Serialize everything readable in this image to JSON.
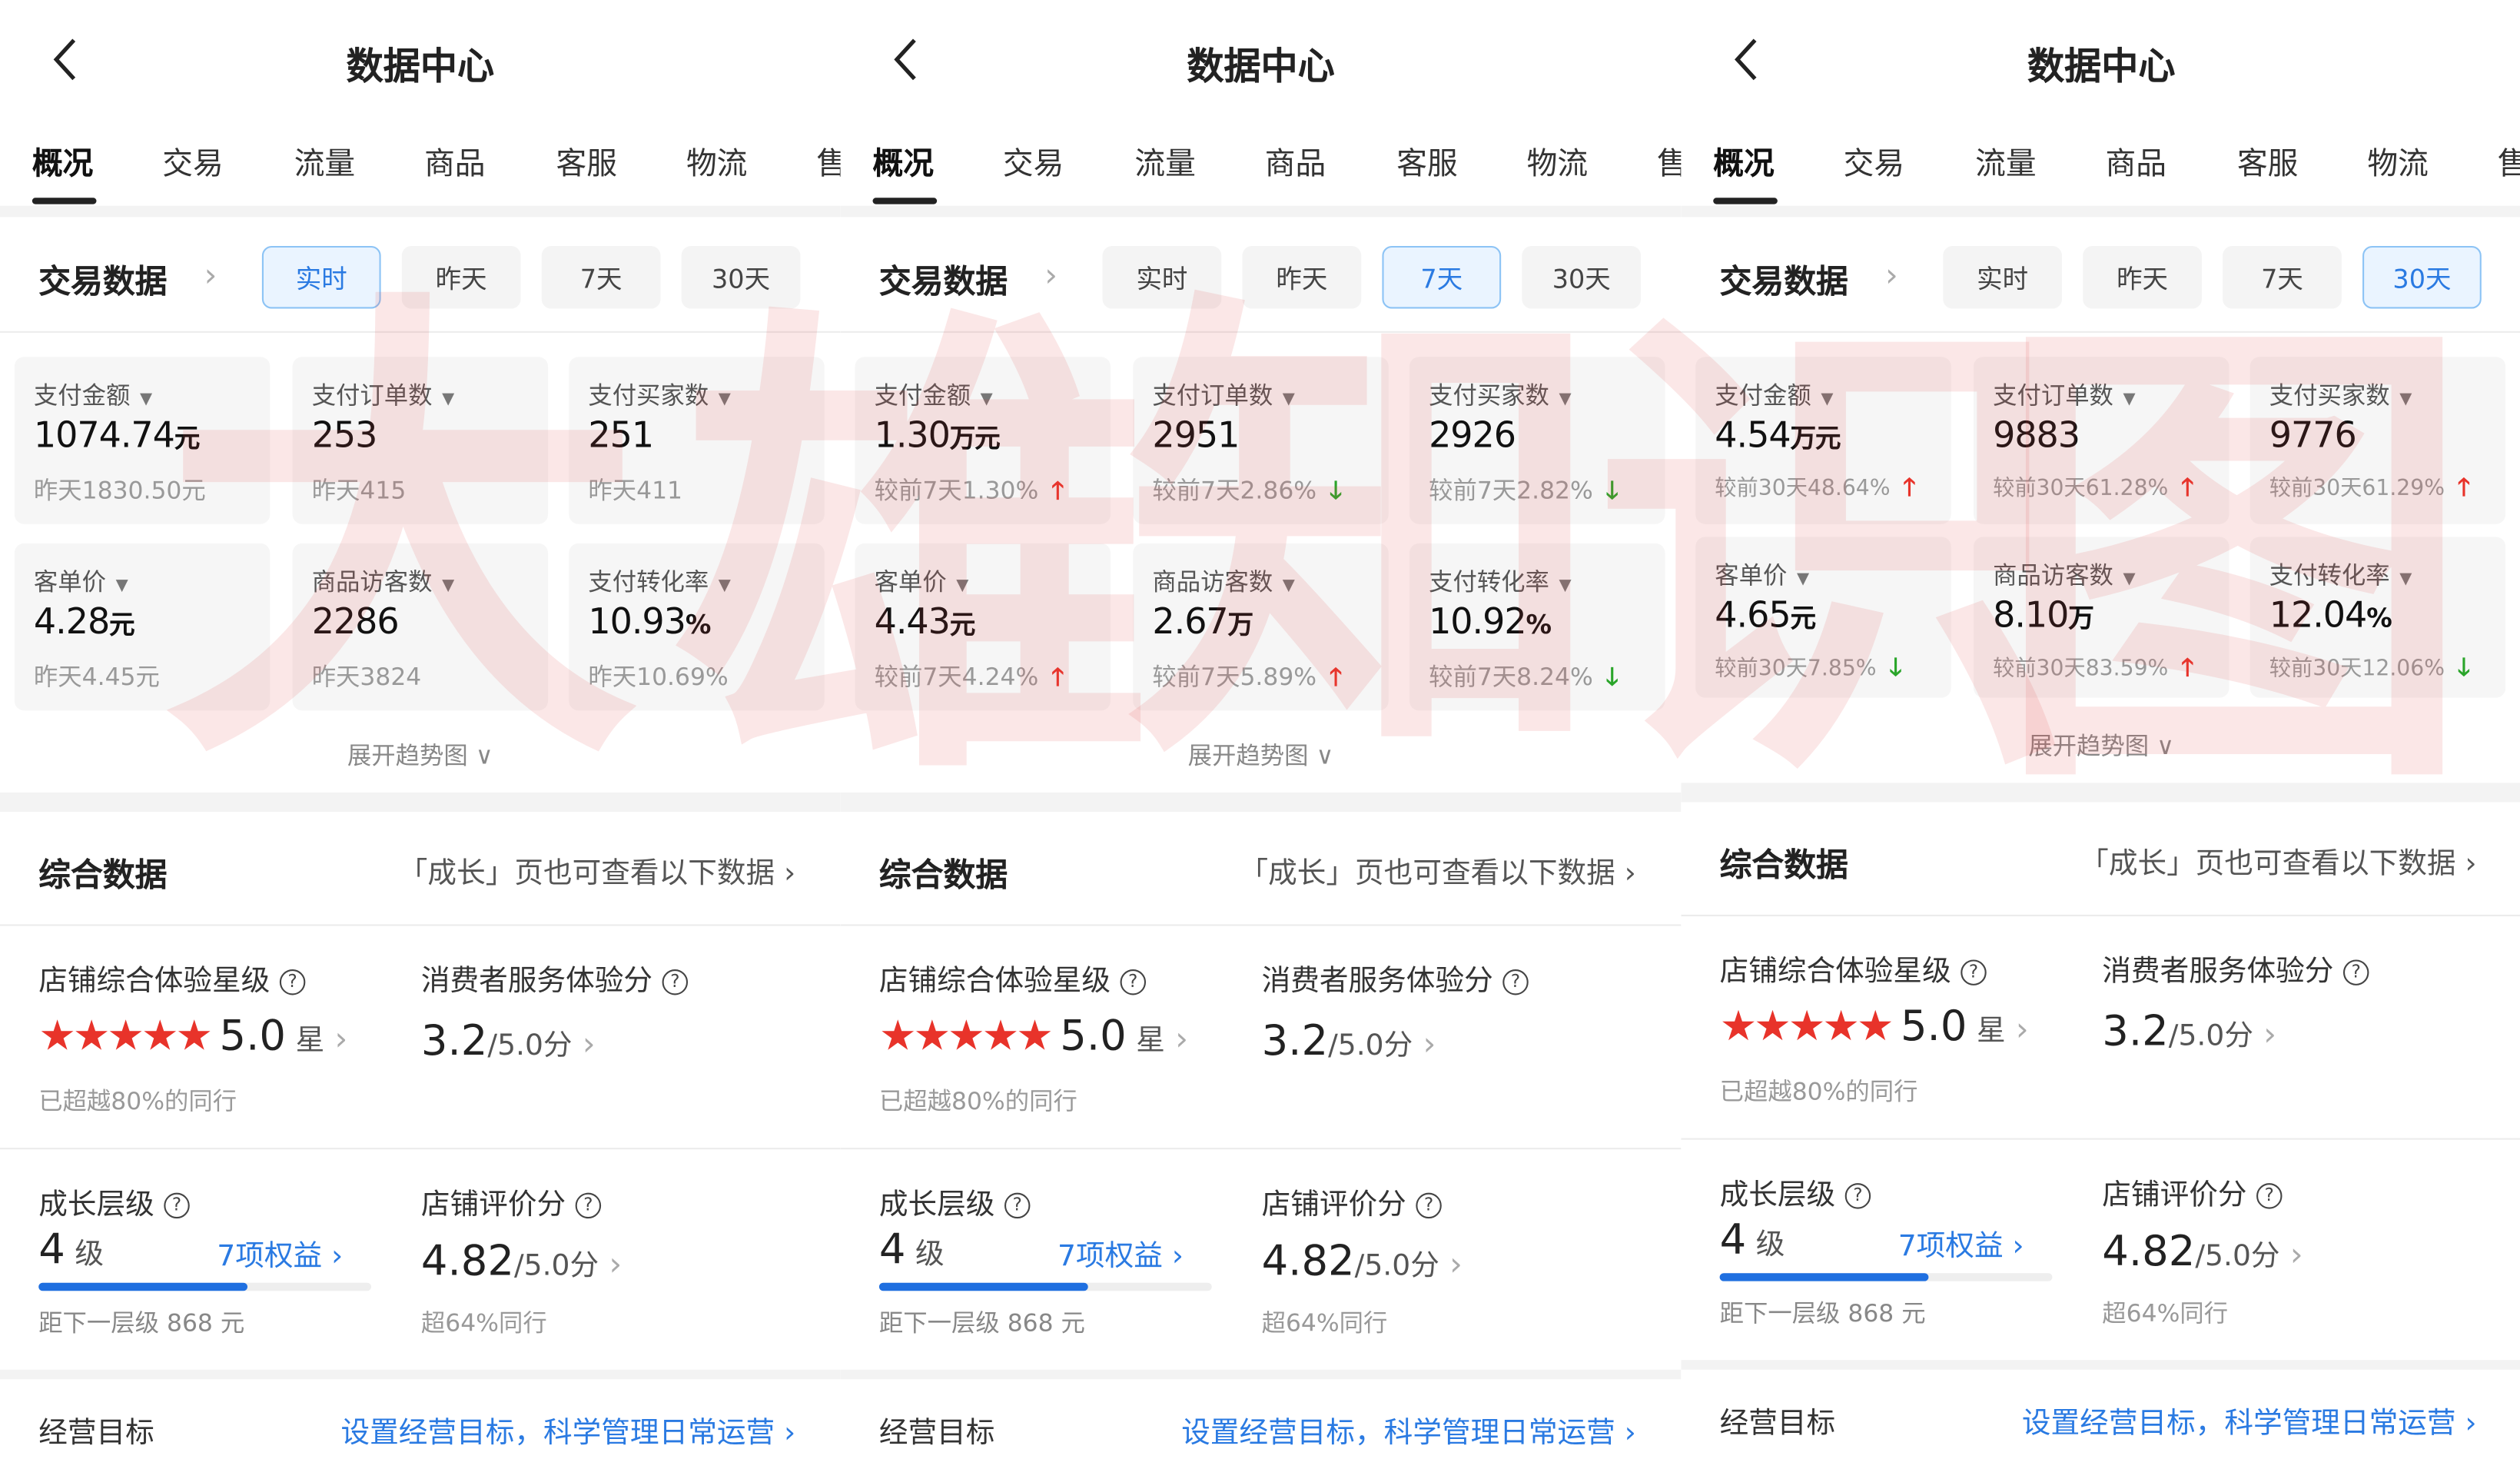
{
  "watermark": "大雄知识图",
  "colors": {
    "accent": "#2a7ae2",
    "up": "#e8332a",
    "down": "#2aa52a",
    "star": "#e8332a"
  },
  "panels": [
    {
      "title": "数据中心",
      "back_icon": "chevron-left-icon",
      "tabs": [
        "概况",
        "交易",
        "流量",
        "商品",
        "客服",
        "物流",
        "售"
      ],
      "selected_tab": 0,
      "trade_section": {
        "title": "交易数据",
        "periods": [
          "实时",
          "昨天",
          "7天",
          "30天"
        ],
        "selected_period": 0
      },
      "metrics": [
        {
          "label": "支付金额",
          "value": "1074.74",
          "unit": "元",
          "sub": "昨天1830.50元",
          "trend": ""
        },
        {
          "label": "支付订单数",
          "value": "253",
          "unit": "",
          "sub": "昨天415",
          "trend": ""
        },
        {
          "label": "支付买家数",
          "value": "251",
          "unit": "",
          "sub": "昨天411",
          "trend": ""
        },
        {
          "label": "客单价",
          "value": "4.28",
          "unit": "元",
          "sub": "昨天4.45元",
          "trend": ""
        },
        {
          "label": "商品访客数",
          "value": "2286",
          "unit": "",
          "sub": "昨天3824",
          "trend": ""
        },
        {
          "label": "支付转化率",
          "value": "10.93",
          "unit": "%",
          "sub": "昨天10.69%",
          "trend": ""
        }
      ],
      "expand_label": "展开趋势图",
      "overall": {
        "title": "综合数据",
        "hint": "「成长」页也可查看以下数据",
        "star_label": "店铺综合体验星级",
        "stars": 5,
        "star_value": "5.0",
        "star_unit": "星",
        "star_note": "已超越80%的同行",
        "service_label": "消费者服务体验分",
        "service_value": "3.2",
        "service_total": "/5.0分",
        "level_label": "成长层级",
        "level_value": "4",
        "level_unit": "级",
        "benefits": "7项权益",
        "level_progress": 0.63,
        "level_note": "距下一层级 868 元",
        "rating_label": "店铺评价分",
        "rating_value": "4.82",
        "rating_total": "/5.0分",
        "rating_note": "超64%同行",
        "goal_label": "经营目标",
        "goal_link": "设置经营目标，科学管理日常运营"
      }
    },
    {
      "title": "数据中心",
      "back_icon": "chevron-left-icon",
      "tabs": [
        "概况",
        "交易",
        "流量",
        "商品",
        "客服",
        "物流",
        "售"
      ],
      "selected_tab": 0,
      "trade_section": {
        "title": "交易数据",
        "periods": [
          "实时",
          "昨天",
          "7天",
          "30天"
        ],
        "selected_period": 2
      },
      "metrics": [
        {
          "label": "支付金额",
          "value": "1.30",
          "unit": "万元",
          "sub": "较前7天1.30%",
          "trend": "up"
        },
        {
          "label": "支付订单数",
          "value": "2951",
          "unit": "",
          "sub": "较前7天2.86%",
          "trend": "down"
        },
        {
          "label": "支付买家数",
          "value": "2926",
          "unit": "",
          "sub": "较前7天2.82%",
          "trend": "down"
        },
        {
          "label": "客单价",
          "value": "4.43",
          "unit": "元",
          "sub": "较前7天4.24%",
          "trend": "up"
        },
        {
          "label": "商品访客数",
          "value": "2.67",
          "unit": "万",
          "sub": "较前7天5.89%",
          "trend": "up"
        },
        {
          "label": "支付转化率",
          "value": "10.92",
          "unit": "%",
          "sub": "较前7天8.24%",
          "trend": "down"
        }
      ],
      "expand_label": "展开趋势图",
      "overall": {
        "title": "综合数据",
        "hint": "「成长」页也可查看以下数据",
        "star_label": "店铺综合体验星级",
        "stars": 5,
        "star_value": "5.0",
        "star_unit": "星",
        "star_note": "已超越80%的同行",
        "service_label": "消费者服务体验分",
        "service_value": "3.2",
        "service_total": "/5.0分",
        "level_label": "成长层级",
        "level_value": "4",
        "level_unit": "级",
        "benefits": "7项权益",
        "level_progress": 0.63,
        "level_note": "距下一层级 868 元",
        "rating_label": "店铺评价分",
        "rating_value": "4.82",
        "rating_total": "/5.0分",
        "rating_note": "超64%同行",
        "goal_label": "经营目标",
        "goal_link": "设置经营目标，科学管理日常运营"
      }
    },
    {
      "title": "数据中心",
      "back_icon": "chevron-left-icon",
      "tabs": [
        "概况",
        "交易",
        "流量",
        "商品",
        "客服",
        "物流",
        "售"
      ],
      "selected_tab": 0,
      "trade_section": {
        "title": "交易数据",
        "periods": [
          "实时",
          "昨天",
          "7天",
          "30天"
        ],
        "selected_period": 3
      },
      "metrics": [
        {
          "label": "支付金额",
          "value": "4.54",
          "unit": "万元",
          "sub": "较前30天48.64%",
          "trend": "up"
        },
        {
          "label": "支付订单数",
          "value": "9883",
          "unit": "",
          "sub": "较前30天61.28%",
          "trend": "up"
        },
        {
          "label": "支付买家数",
          "value": "9776",
          "unit": "",
          "sub": "较前30天61.29%",
          "trend": "up"
        },
        {
          "label": "客单价",
          "value": "4.65",
          "unit": "元",
          "sub": "较前30天7.85%",
          "trend": "down"
        },
        {
          "label": "商品访客数",
          "value": "8.10",
          "unit": "万",
          "sub": "较前30天83.59%",
          "trend": "up"
        },
        {
          "label": "支付转化率",
          "value": "12.04",
          "unit": "%",
          "sub": "较前30天12.06%",
          "trend": "down"
        }
      ],
      "expand_label": "展开趋势图",
      "overall": {
        "title": "综合数据",
        "hint": "「成长」页也可查看以下数据",
        "star_label": "店铺综合体验星级",
        "stars": 5,
        "star_value": "5.0",
        "star_unit": "星",
        "star_note": "已超越80%的同行",
        "service_label": "消费者服务体验分",
        "service_value": "3.2",
        "service_total": "/5.0分",
        "level_label": "成长层级",
        "level_value": "4",
        "level_unit": "级",
        "benefits": "7项权益",
        "level_progress": 0.63,
        "level_note": "距下一层级 868 元",
        "rating_label": "店铺评价分",
        "rating_value": "4.82",
        "rating_total": "/5.0分",
        "rating_note": "超64%同行",
        "goal_label": "经营目标",
        "goal_link": "设置经营目标，科学管理日常运营"
      }
    }
  ]
}
